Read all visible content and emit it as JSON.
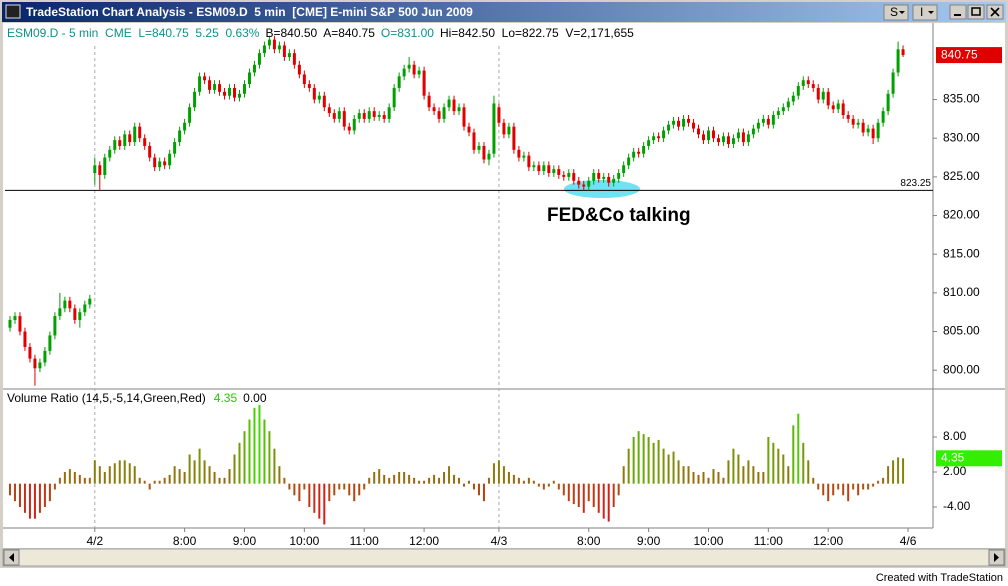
{
  "window": {
    "title": "TradeStation Chart Analysis - ESM09.D  5 min  [CME] E-mini S&P 500 Jun 2009",
    "toolbar": [
      "S",
      "I"
    ]
  },
  "footer": "Created with TradeStation",
  "chart_data": [
    {
      "type": "candlestick",
      "status": [
        {
          "text": "ESM09.D - 5 min  CME  L=840.75  5.25  0.63%",
          "color": "#10908a"
        },
        {
          "text": "B=840.50  A=840.75",
          "color": "#000000"
        },
        {
          "text": "O=831.00",
          "color": "#10908a"
        },
        {
          "text": "Hi=842.50  Lo=822.75  V=2,171,655",
          "color": "#000000"
        }
      ],
      "annotation": "FED&Co talking",
      "hline": 823.25,
      "up_color": "#00a000",
      "down_color": "#e00000",
      "xlim": [
        -1,
        185
      ],
      "xticks": [
        {
          "value": 17,
          "label": "4/2"
        },
        {
          "value": 35,
          "label": "8:00"
        },
        {
          "value": 47,
          "label": "9:00"
        },
        {
          "value": 59,
          "label": "10:00"
        },
        {
          "value": 71,
          "label": "11:00"
        },
        {
          "value": 83,
          "label": "12:00"
        },
        {
          "value": 98,
          "label": "4/3"
        },
        {
          "value": 116,
          "label": "8:00"
        },
        {
          "value": 128,
          "label": "9:00"
        },
        {
          "value": 140,
          "label": "10:00"
        },
        {
          "value": 152,
          "label": "11:00"
        },
        {
          "value": 164,
          "label": "12:00"
        },
        {
          "value": 180,
          "label": "4/6"
        }
      ],
      "ylim": [
        797.7,
        844.9
      ],
      "yticks": [
        {
          "value": 800,
          "label": "800.00"
        },
        {
          "value": 805,
          "label": "805.00"
        },
        {
          "value": 810,
          "label": "810.00"
        },
        {
          "value": 815,
          "label": "815.00"
        },
        {
          "value": 820,
          "label": "820.00"
        },
        {
          "value": 825,
          "label": "825.00"
        },
        {
          "value": 830,
          "label": "830.00"
        },
        {
          "value": 835,
          "label": "835.00"
        }
      ],
      "open": [
        805.5,
        806.5,
        807,
        805,
        803,
        801.5,
        800.25,
        801,
        802.5,
        804.5,
        807,
        808,
        809,
        808,
        806.5,
        807.5,
        808.5,
        825.5,
        826.5,
        825.25,
        827.5,
        828.5,
        829.75,
        829,
        830.5,
        829.5,
        831.5,
        830,
        829,
        827.5,
        826.25,
        827,
        826.5,
        828,
        829.5,
        831,
        832,
        834,
        836,
        838,
        837.5,
        836.25,
        837,
        836,
        835.5,
        836.5,
        835.25,
        835.75,
        837,
        838.5,
        839.5,
        841,
        842,
        842.75,
        841.5,
        842,
        840.5,
        841,
        839.5,
        838.25,
        837,
        836.5,
        835,
        835.5,
        834,
        833.25,
        832.5,
        833.5,
        831.5,
        831,
        832.5,
        833.25,
        832.5,
        833.5,
        832.75,
        833,
        832.5,
        834,
        836.5,
        838,
        839,
        839.5,
        838.25,
        838.75,
        835.5,
        834,
        833.5,
        832.5,
        834,
        835,
        833.5,
        834,
        831.5,
        830.75,
        828.5,
        829,
        827.25,
        828,
        834,
        832,
        830.5,
        831.5,
        828.5,
        827.5,
        827.75,
        826.25,
        826.5,
        825.75,
        826.5,
        825.5,
        826,
        825.25,
        825,
        825.5,
        824.5,
        824,
        823.75,
        824.5,
        825.5,
        824.75,
        825,
        824.25,
        824.75,
        825.5,
        826.5,
        827.5,
        828.25,
        828,
        829,
        829.75,
        830.25,
        830,
        831,
        831.75,
        832.25,
        831.5,
        832.5,
        832,
        831.25,
        830.5,
        829.75,
        831,
        830,
        829.5,
        830.25,
        829.25,
        830,
        830.75,
        829.5,
        830.5,
        831.25,
        832,
        832.5,
        831.75,
        833,
        833.5,
        834,
        834.75,
        835.5,
        836.75,
        837.5,
        837,
        836.5,
        835,
        836,
        834.25,
        833.75,
        834.5,
        833,
        832.5,
        831.75,
        832,
        830.75,
        831.25,
        830,
        832,
        833.5,
        835.75,
        838.5,
        841.5
      ],
      "high": [
        807,
        807.5,
        807.5,
        805.5,
        803.5,
        802,
        801.5,
        803,
        805,
        807.5,
        810,
        809.5,
        809.5,
        808.5,
        808,
        809,
        809.75,
        827.5,
        827,
        828,
        829,
        830.25,
        830.25,
        831,
        831,
        832,
        832,
        830.5,
        829.5,
        828,
        827.5,
        827.5,
        828.5,
        830,
        831.5,
        832.5,
        834.5,
        836.5,
        838.5,
        838.5,
        838,
        837.5,
        837.5,
        836.5,
        837,
        837,
        836.25,
        837.5,
        839,
        840,
        841.5,
        842.5,
        843.25,
        843.25,
        842.5,
        842.5,
        841.5,
        841.5,
        840,
        838.75,
        837.5,
        837,
        836,
        836,
        834.5,
        833.75,
        834,
        834,
        832,
        833,
        833.75,
        833.75,
        834,
        834,
        833.5,
        833.5,
        834.5,
        837,
        838.5,
        839.5,
        840.5,
        840,
        839.25,
        839.25,
        836,
        834.5,
        834,
        834.5,
        835.5,
        835.5,
        834.5,
        834.5,
        832,
        831.25,
        829.5,
        829.5,
        828.5,
        835.5,
        834.5,
        832.5,
        832,
        832,
        829,
        828.25,
        828.25,
        827,
        827,
        827,
        827,
        826.5,
        826.5,
        825.75,
        826,
        826,
        825,
        824.5,
        825,
        826,
        826,
        825.5,
        825.5,
        825.25,
        826,
        827,
        828,
        828.75,
        828.75,
        829.5,
        830.25,
        830.75,
        830.75,
        831.5,
        832.25,
        832.75,
        832.75,
        833,
        833,
        832.5,
        831.75,
        831,
        831.5,
        831.5,
        830.5,
        830.75,
        830.75,
        830.5,
        831.25,
        831.25,
        831,
        831.75,
        832.5,
        833,
        833,
        833.5,
        834,
        834.5,
        835.25,
        836,
        837.25,
        838,
        838,
        837.5,
        837,
        836.5,
        836.5,
        834.75,
        835,
        835,
        833.5,
        833,
        832.5,
        832.5,
        831.75,
        831.75,
        832.5,
        834,
        836.25,
        839,
        842.5,
        842
      ],
      "low": [
        805,
        806,
        804.5,
        802.5,
        801,
        798,
        799.75,
        800.5,
        802,
        804,
        806.5,
        807.5,
        807.5,
        806,
        805.5,
        807,
        808,
        824,
        823.25,
        824.75,
        827,
        828,
        828.5,
        828.5,
        829,
        829,
        829.5,
        828.5,
        827,
        825.75,
        825.75,
        826,
        826,
        827.5,
        829,
        830.5,
        831.5,
        833.5,
        835.5,
        837,
        835.75,
        835.75,
        835.5,
        835,
        835,
        834.75,
        834.75,
        835.25,
        836.5,
        838,
        839,
        840.5,
        841.5,
        841,
        841,
        840,
        840,
        839,
        837.75,
        836.5,
        836,
        834.5,
        834.5,
        833.5,
        832.75,
        832,
        832,
        831,
        830.5,
        830.5,
        832,
        832,
        832,
        832.25,
        832.25,
        832,
        832,
        833.5,
        836,
        837.5,
        838.5,
        837.75,
        837.75,
        835,
        833.5,
        833,
        832,
        832,
        833.5,
        833,
        833,
        831,
        830.25,
        828,
        828,
        826.75,
        826.5,
        827.5,
        831.5,
        830,
        830,
        828,
        827,
        827,
        825.75,
        825.75,
        825.25,
        825.25,
        825,
        825,
        824.75,
        824.5,
        824.5,
        824,
        823.5,
        823.25,
        823.25,
        824,
        824.25,
        824.25,
        823.75,
        823.75,
        824.25,
        825,
        826,
        827,
        827.5,
        827.5,
        828.5,
        829.25,
        829.5,
        829.5,
        830.5,
        831.25,
        831,
        831,
        831.5,
        830.75,
        830,
        829.25,
        829.25,
        829.5,
        829,
        829,
        828.75,
        828.75,
        829.5,
        829,
        829,
        830,
        830.75,
        831.5,
        831.25,
        831.25,
        832.5,
        833,
        833.5,
        834.25,
        835,
        836.25,
        836.5,
        836,
        834.5,
        834.5,
        833.75,
        833.25,
        833.25,
        832.5,
        832,
        831.25,
        831.25,
        830.25,
        830.25,
        829.25,
        829.5,
        831.5,
        833,
        835.25,
        838,
        840.5
      ],
      "close": [
        806.5,
        807,
        805,
        803,
        801.5,
        800.25,
        801,
        802.5,
        804.5,
        807,
        808,
        809,
        808,
        806.5,
        807.5,
        808.5,
        809.25,
        826.5,
        825.25,
        827.5,
        828.5,
        829.75,
        829,
        830.5,
        829.5,
        831.5,
        830,
        829,
        827.5,
        826.25,
        827,
        826.5,
        828,
        829.5,
        831,
        832,
        834,
        836,
        838,
        837.5,
        836.25,
        837,
        836,
        835.5,
        836.5,
        835.25,
        835.75,
        837,
        838.5,
        839.5,
        841,
        842,
        842.75,
        841.5,
        842,
        840.5,
        841,
        839.5,
        838.25,
        837,
        836.5,
        835,
        835.5,
        834,
        833.25,
        832.5,
        833.5,
        831.5,
        831,
        832.5,
        833.25,
        832.5,
        833.5,
        832.75,
        833,
        832.5,
        834,
        836.5,
        838,
        839,
        839.5,
        838.25,
        838.75,
        835.5,
        834,
        833.5,
        832.5,
        834,
        835,
        833.5,
        834,
        831.5,
        830.75,
        828.5,
        829,
        827.25,
        828,
        834.5,
        832,
        830.5,
        831.5,
        828.5,
        827.5,
        827.75,
        826.25,
        826.5,
        825.75,
        826.5,
        825.5,
        826,
        825.25,
        825,
        825.5,
        824.5,
        824,
        823.75,
        824.5,
        825.5,
        824.75,
        825,
        824.25,
        824.75,
        825.5,
        826.5,
        827.5,
        828.25,
        828,
        829,
        829.75,
        830.25,
        830,
        831,
        831.75,
        832.25,
        831.5,
        832.5,
        832,
        831.25,
        830.5,
        829.75,
        831,
        830,
        829.5,
        830.25,
        829.25,
        830,
        830.75,
        829.5,
        830.5,
        831.25,
        832,
        832.5,
        831.75,
        833,
        833.5,
        834,
        834.75,
        835.5,
        836.75,
        837.5,
        837,
        836.5,
        835,
        836,
        834.25,
        833.75,
        834.5,
        833,
        832.5,
        831.75,
        832,
        830.75,
        831.25,
        830,
        832,
        833.5,
        835.75,
        838.5,
        841.5,
        840.75
      ]
    },
    {
      "type": "bar",
      "title": "Volume Ratio (14,5,-5,14,Green,Red)",
      "zero_line": {
        "value": 0,
        "label": "0.00"
      },
      "colors": [
        "#d81818",
        "#33ee00"
      ],
      "xlim": [
        -1,
        185
      ],
      "ylim": [
        -7.43,
        16.06
      ],
      "yticks": [
        {
          "value": 8,
          "label": "8.00"
        },
        {
          "value": 2,
          "label": "2.00"
        },
        {
          "value": -4,
          "label": "-4.00"
        }
      ],
      "values": [
        -2,
        -3,
        -4,
        -5,
        -6,
        -6,
        -5,
        -4,
        -3,
        -1,
        1,
        2,
        2.5,
        2,
        1.5,
        1,
        1,
        4,
        3,
        2,
        3,
        3.5,
        4,
        4,
        3.5,
        3,
        1,
        0.5,
        -1,
        0.5,
        0.5,
        1,
        1.5,
        3,
        2.5,
        2,
        5,
        4,
        6,
        4,
        3,
        2,
        1,
        1,
        2.5,
        5,
        7,
        9,
        11,
        13,
        13.5,
        11,
        9,
        6,
        3,
        1,
        -1,
        -2,
        -3,
        -1,
        -4,
        -5,
        -6,
        -7,
        -3,
        -2,
        -1,
        -1,
        -2,
        -3,
        -2,
        -1,
        1,
        2,
        2.5,
        1.5,
        1,
        1.5,
        2,
        2,
        1.5,
        1,
        0.5,
        0.5,
        1,
        1.5,
        1,
        2,
        3,
        1.5,
        1,
        -0.5,
        0.5,
        -1,
        -2,
        -3,
        1,
        3.5,
        4,
        3,
        2,
        1.5,
        1,
        0.5,
        1,
        0.5,
        -0.5,
        -1,
        -0.5,
        0.5,
        -1,
        -2,
        -3,
        -3.5,
        -4,
        -5,
        -3,
        -4,
        -5,
        -6,
        -6.5,
        -4,
        -2,
        3,
        6,
        8,
        9,
        8.5,
        8,
        7,
        7.5,
        6,
        5,
        5.5,
        4,
        3,
        3,
        2,
        1.5,
        2,
        1,
        2.5,
        2,
        1,
        4,
        6,
        5,
        3,
        4,
        3,
        2,
        2,
        8,
        7,
        6,
        5,
        3,
        10,
        12,
        7,
        4,
        1,
        -1,
        -2,
        -3,
        -2,
        -1,
        -2,
        -3,
        -1,
        -2,
        -1,
        -1,
        -0.5,
        0.5,
        1,
        3,
        4,
        4.5,
        4.35
      ]
    }
  ]
}
